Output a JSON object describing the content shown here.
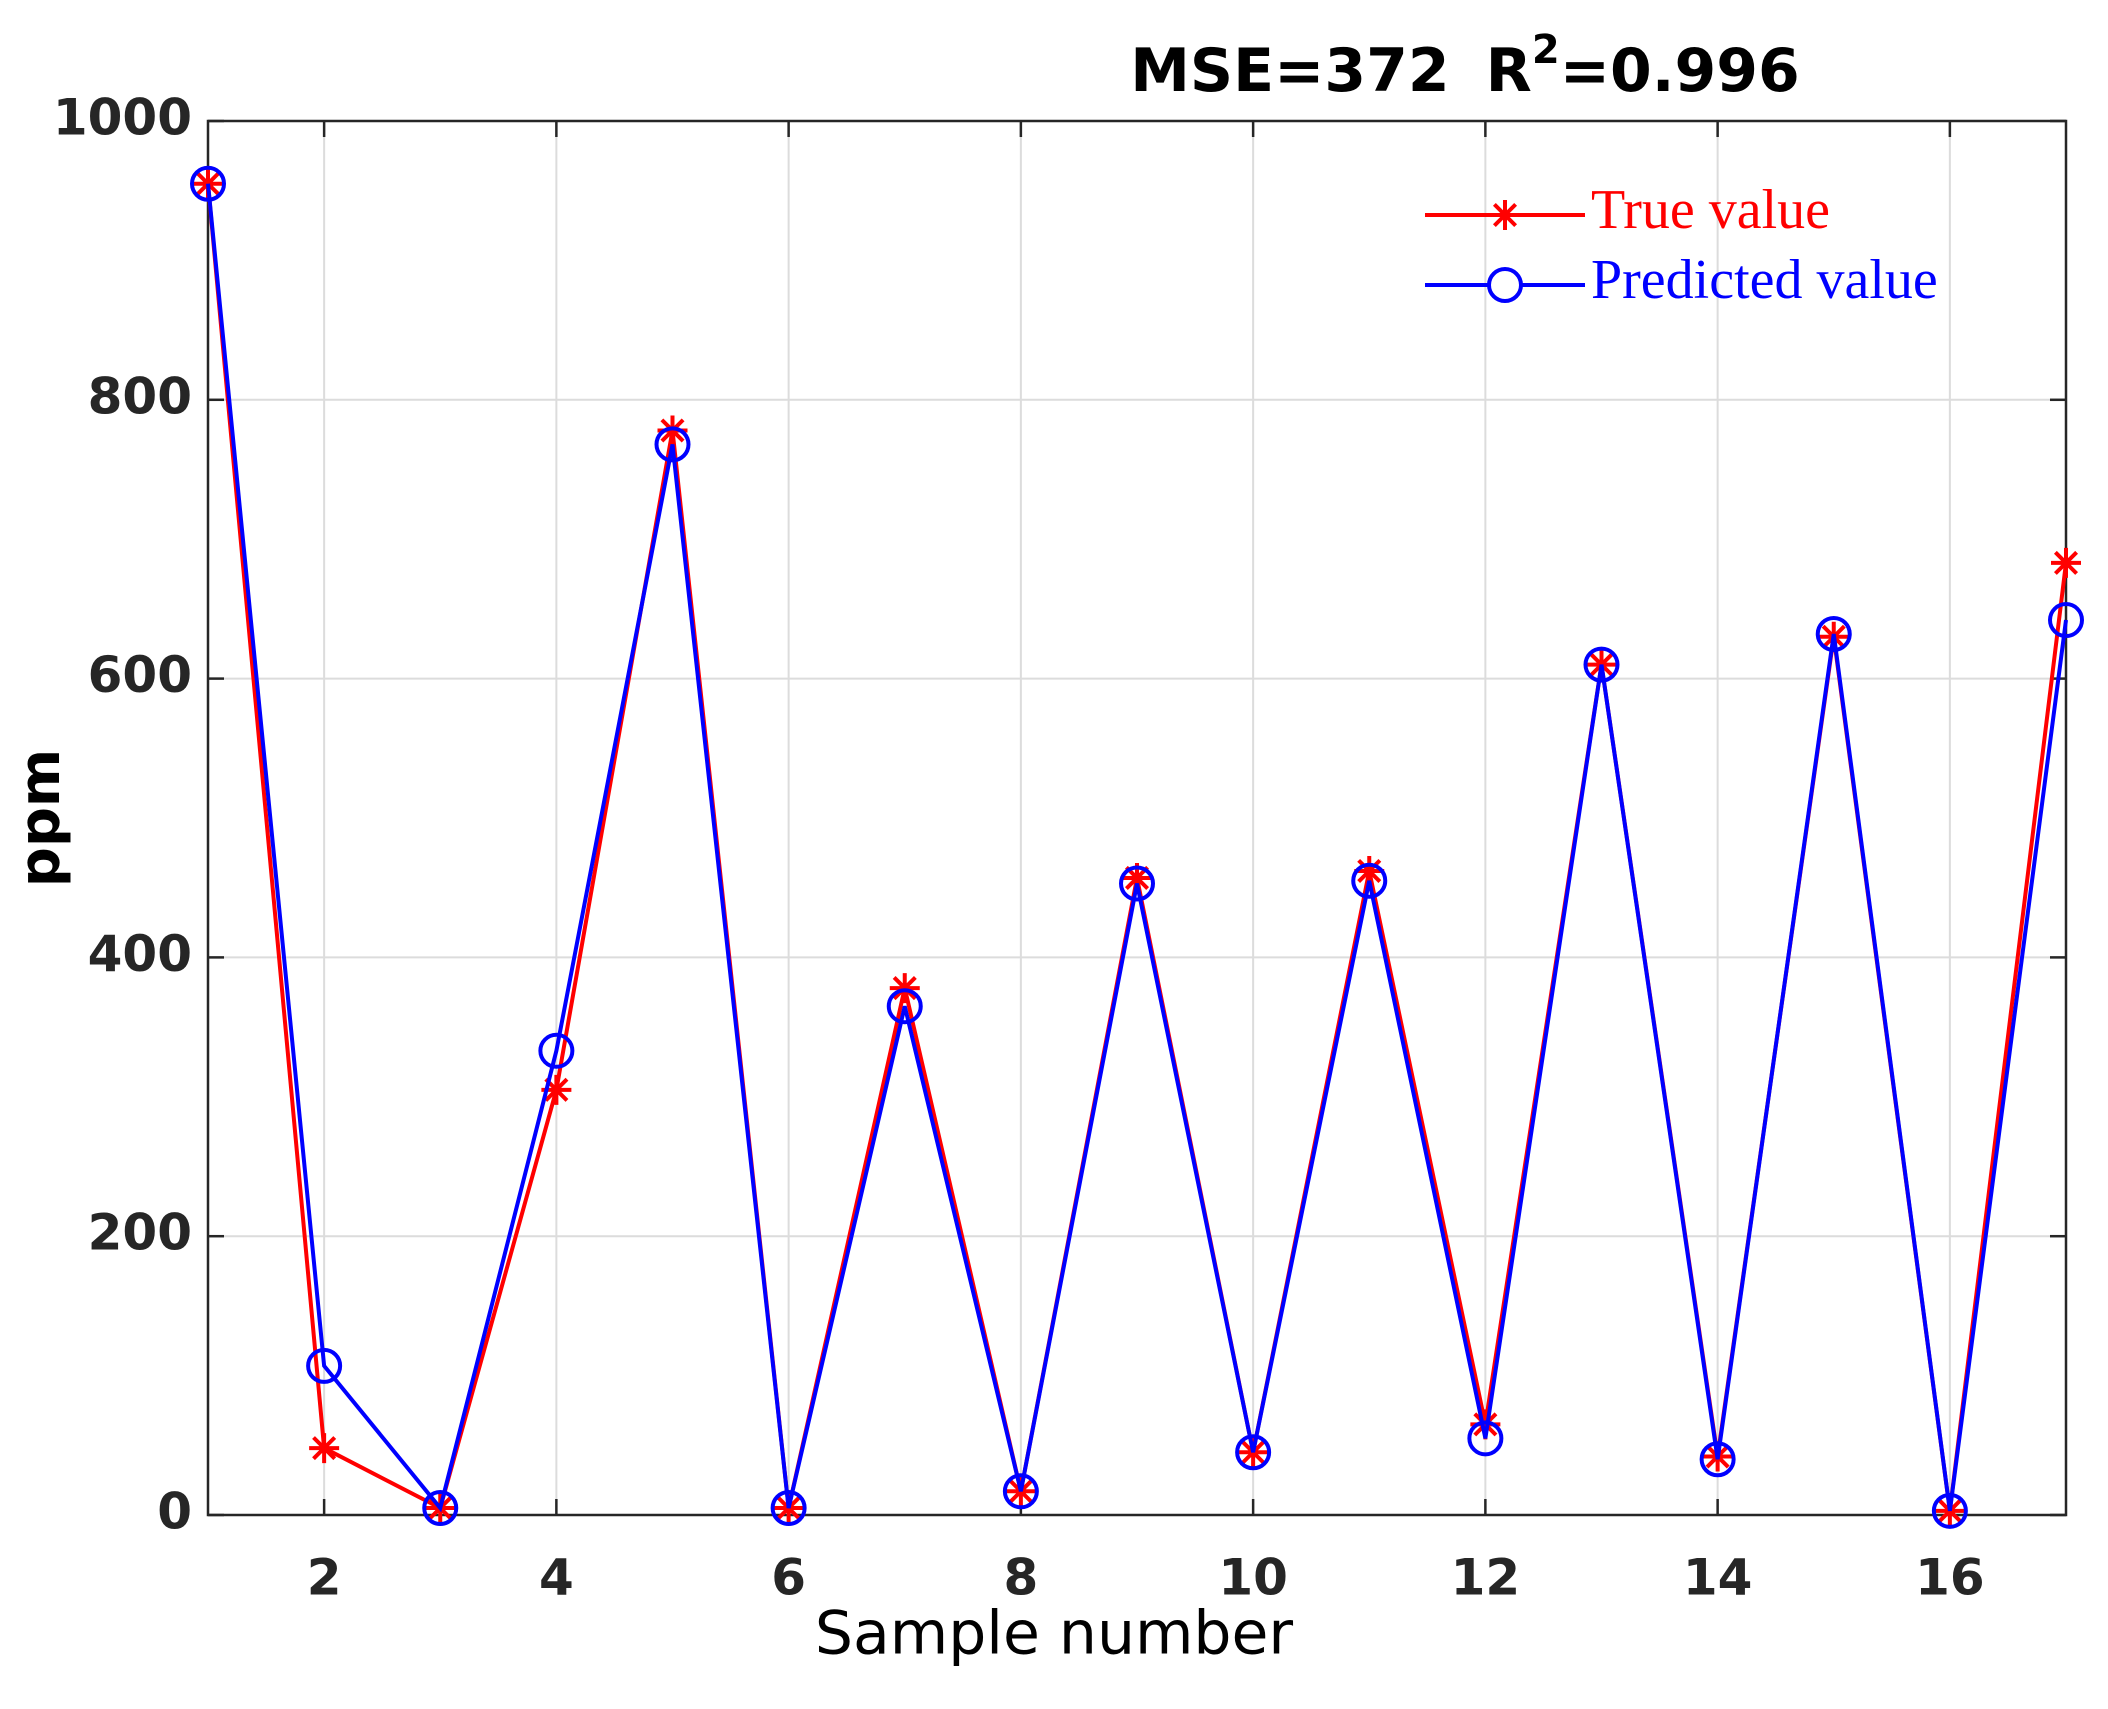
{
  "chart_data": {
    "type": "line",
    "title": [
      "MSE=372",
      "R",
      "2",
      "=0.996"
    ],
    "x_label": "Sample number",
    "y_label": "ppm",
    "x": [
      1,
      2,
      3,
      4,
      5,
      6,
      7,
      8,
      9,
      10,
      11,
      12,
      13,
      14,
      15,
      16,
      17
    ],
    "series": [
      {
        "name": "True value",
        "color": "#ff0000",
        "marker": "star",
        "values": [
          955,
          48,
          5,
          305,
          778,
          5,
          378,
          17,
          457,
          45,
          462,
          65,
          610,
          42,
          630,
          3,
          683
        ]
      },
      {
        "name": "Predicted value",
        "color": "#0000ff",
        "marker": "circle",
        "values": [
          955,
          107,
          5,
          333,
          768,
          5,
          365,
          17,
          453,
          45,
          455,
          55,
          610,
          40,
          632,
          3,
          642
        ]
      }
    ],
    "xlim": [
      1,
      17
    ],
    "xticks": [
      2,
      4,
      6,
      8,
      10,
      12,
      14,
      16
    ],
    "ylim": [
      0,
      1000
    ],
    "yticks": [
      0,
      200,
      400,
      600,
      800,
      1000
    ],
    "grid": true,
    "legend": "upper right"
  }
}
